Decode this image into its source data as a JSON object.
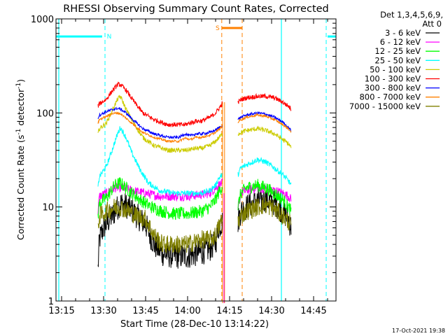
{
  "chart_data": {
    "type": "line",
    "title": "RHESSI Observing Summary Count Rates, Corrected",
    "xlabel": "Start Time (28-Dec-10 13:14:22)",
    "ylabel": "Corrected Count Rate (s",
    "ylabel_sup1": "-1",
    "ylabel_mid": " detector",
    "ylabel_sup2": "-1",
    "ylabel_end": ")",
    "y_scale": "log",
    "ylim": [
      1,
      1000
    ],
    "xlim_minutes": [
      -2,
      98
    ],
    "y_ticks": [
      {
        "value": 1,
        "label": "1"
      },
      {
        "value": 10,
        "label": "10"
      },
      {
        "value": 100,
        "label": "100"
      },
      {
        "value": 1000,
        "label": "1000"
      }
    ],
    "x_ticks": [
      {
        "minute": 0,
        "label": "13:15"
      },
      {
        "minute": 15,
        "label": "13:30"
      },
      {
        "minute": 30,
        "label": "13:45"
      },
      {
        "minute": 45,
        "label": "14:00"
      },
      {
        "minute": 60,
        "label": "14:15"
      },
      {
        "minute": 75,
        "label": "14:30"
      },
      {
        "minute": 90,
        "label": "14:45"
      }
    ],
    "legend_header": [
      "Det 1,3,4,5,6,9,",
      "Att 0"
    ],
    "legend_position": "right",
    "date_stamp": "17-Oct-2021 19:38",
    "flags": [
      {
        "label": "N",
        "color": "#00ffff",
        "value": 650,
        "segments": [
          [
            -2,
            14.5
          ],
          [
            95,
            98
          ]
        ],
        "boundaries": [
          15.5,
          94.5
        ]
      },
      {
        "label": "S",
        "color": "#ff8000",
        "value": 800,
        "segments": [
          [
            57.2,
            64.5
          ]
        ],
        "boundaries": [
          57.2,
          64.5
        ]
      }
    ],
    "cyan_lines": [
      -1,
      78.5
    ],
    "series": [
      {
        "name": "3 - 6 keV",
        "color": "#000000",
        "noise": 0.14,
        "points": [
          [
            13,
            2.2
          ],
          [
            13.5,
            4.5
          ],
          [
            15,
            6
          ],
          [
            18,
            8
          ],
          [
            21,
            11
          ],
          [
            24,
            10
          ],
          [
            27,
            8
          ],
          [
            30,
            6.5
          ],
          [
            33,
            4
          ],
          [
            36,
            3.2
          ],
          [
            40,
            3
          ],
          [
            45,
            3
          ],
          [
            50,
            3.3
          ],
          [
            53,
            3.6
          ],
          [
            55,
            4.2
          ],
          [
            56,
            6
          ],
          [
            57.5,
            7
          ],
          [
            63,
            7
          ],
          [
            64,
            9
          ],
          [
            66,
            10
          ],
          [
            70,
            11.5
          ],
          [
            73,
            12
          ],
          [
            76,
            11
          ],
          [
            79,
            9
          ],
          [
            81,
            7.5
          ],
          [
            82,
            6
          ]
        ]
      },
      {
        "name": "6 - 12 keV",
        "color": "#ff00ff",
        "noise": 0.05,
        "points": [
          [
            13,
            9
          ],
          [
            13.5,
            13
          ],
          [
            16,
            14
          ],
          [
            19,
            16
          ],
          [
            22,
            16
          ],
          [
            25,
            15
          ],
          [
            30,
            14
          ],
          [
            35,
            13
          ],
          [
            40,
            13
          ],
          [
            45,
            13
          ],
          [
            50,
            13.5
          ],
          [
            53,
            14
          ],
          [
            55,
            16
          ],
          [
            56,
            17
          ],
          [
            57.5,
            18
          ],
          [
            63,
            9
          ],
          [
            64,
            14
          ],
          [
            66,
            15
          ],
          [
            70,
            16
          ],
          [
            73,
            15.5
          ],
          [
            76,
            15
          ],
          [
            79,
            14
          ],
          [
            81,
            13
          ],
          [
            82,
            12
          ]
        ]
      },
      {
        "name": "12 - 25 keV",
        "color": "#00ff00",
        "noise": 0.07,
        "points": [
          [
            13,
            8
          ],
          [
            13.5,
            11
          ],
          [
            16,
            12.5
          ],
          [
            19,
            17
          ],
          [
            21,
            18
          ],
          [
            24,
            15
          ],
          [
            28,
            12
          ],
          [
            32,
            10
          ],
          [
            36,
            9
          ],
          [
            40,
            8.5
          ],
          [
            45,
            8.5
          ],
          [
            50,
            9
          ],
          [
            53,
            10
          ],
          [
            55,
            12
          ],
          [
            56,
            14
          ],
          [
            57.5,
            17
          ],
          [
            63,
            10
          ],
          [
            64,
            14
          ],
          [
            66,
            16
          ],
          [
            70,
            17
          ],
          [
            73,
            16
          ],
          [
            76,
            14
          ],
          [
            79,
            12
          ],
          [
            81,
            10
          ],
          [
            82,
            9
          ]
        ]
      },
      {
        "name": "25 - 50 keV",
        "color": "#00ffff",
        "noise": 0.03,
        "points": [
          [
            13,
            16
          ],
          [
            13.5,
            21
          ],
          [
            16,
            27
          ],
          [
            18,
            40
          ],
          [
            20,
            60
          ],
          [
            21,
            70
          ],
          [
            23,
            55
          ],
          [
            25,
            38
          ],
          [
            28,
            25
          ],
          [
            31,
            18
          ],
          [
            35,
            15
          ],
          [
            40,
            14
          ],
          [
            45,
            14
          ],
          [
            50,
            14
          ],
          [
            53,
            15
          ],
          [
            55,
            17
          ],
          [
            56,
            20
          ],
          [
            57.5,
            22
          ],
          [
            63,
            22
          ],
          [
            64,
            26
          ],
          [
            66,
            28
          ],
          [
            70,
            32
          ],
          [
            73,
            30
          ],
          [
            76,
            26
          ],
          [
            79,
            22
          ],
          [
            81,
            19
          ],
          [
            82,
            17
          ]
        ]
      },
      {
        "name": "50 - 100 keV",
        "color": "#cccc00",
        "noise": 0.025,
        "points": [
          [
            13,
            60
          ],
          [
            13.5,
            68
          ],
          [
            16,
            78
          ],
          [
            18,
            105
          ],
          [
            20,
            140
          ],
          [
            21,
            150
          ],
          [
            23,
            110
          ],
          [
            26,
            75
          ],
          [
            29,
            55
          ],
          [
            33,
            45
          ],
          [
            38,
            40
          ],
          [
            44,
            40
          ],
          [
            48,
            42
          ],
          [
            50,
            42
          ],
          [
            53,
            45
          ],
          [
            55,
            50
          ],
          [
            57,
            58
          ],
          [
            57.5,
            60
          ],
          [
            63,
            60
          ],
          [
            64,
            62
          ],
          [
            66,
            65
          ],
          [
            70,
            68
          ],
          [
            73,
            65
          ],
          [
            76,
            60
          ],
          [
            79,
            52
          ],
          [
            81,
            47
          ],
          [
            82,
            43
          ]
        ]
      },
      {
        "name": "100 - 300 keV",
        "color": "#ff0000",
        "noise": 0.025,
        "points": [
          [
            13,
            118
          ],
          [
            13.5,
            125
          ],
          [
            16,
            140
          ],
          [
            18,
            170
          ],
          [
            20,
            200
          ],
          [
            21,
            200
          ],
          [
            23,
            175
          ],
          [
            26,
            130
          ],
          [
            29,
            100
          ],
          [
            33,
            85
          ],
          [
            38,
            75
          ],
          [
            44,
            75
          ],
          [
            48,
            82
          ],
          [
            50,
            82
          ],
          [
            53,
            90
          ],
          [
            55,
            100
          ],
          [
            57,
            120
          ],
          [
            57.5,
            130
          ],
          [
            63,
            130
          ],
          [
            64,
            138
          ],
          [
            66,
            145
          ],
          [
            70,
            150
          ],
          [
            73,
            150
          ],
          [
            76,
            145
          ],
          [
            79,
            130
          ],
          [
            81,
            118
          ],
          [
            82,
            110
          ]
        ]
      },
      {
        "name": "300 - 800 keV",
        "color": "#0000ff",
        "noise": 0.015,
        "points": [
          [
            13,
            88
          ],
          [
            13.5,
            95
          ],
          [
            16,
            103
          ],
          [
            18,
            108
          ],
          [
            20,
            112
          ],
          [
            21,
            110
          ],
          [
            23,
            100
          ],
          [
            26,
            82
          ],
          [
            29,
            68
          ],
          [
            33,
            60
          ],
          [
            38,
            55
          ],
          [
            42,
            55
          ],
          [
            44,
            60
          ],
          [
            46,
            57
          ],
          [
            48,
            60
          ],
          [
            50,
            60
          ],
          [
            53,
            62
          ],
          [
            55,
            66
          ],
          [
            57,
            72
          ],
          [
            57.5,
            75
          ],
          [
            63,
            85
          ],
          [
            64,
            90
          ],
          [
            66,
            95
          ],
          [
            70,
            100
          ],
          [
            73,
            97
          ],
          [
            76,
            90
          ],
          [
            79,
            80
          ],
          [
            81,
            70
          ],
          [
            82,
            65
          ]
        ]
      },
      {
        "name": "800 - 7000 keV",
        "color": "#ff8000",
        "noise": 0.012,
        "points": [
          [
            13,
            78
          ],
          [
            13.5,
            85
          ],
          [
            16,
            92
          ],
          [
            18,
            98
          ],
          [
            20,
            100
          ],
          [
            21,
            98
          ],
          [
            23,
            88
          ],
          [
            26,
            74
          ],
          [
            29,
            62
          ],
          [
            33,
            55
          ],
          [
            38,
            50
          ],
          [
            42,
            50
          ],
          [
            44,
            54
          ],
          [
            46,
            52
          ],
          [
            48,
            55
          ],
          [
            50,
            55
          ],
          [
            53,
            58
          ],
          [
            55,
            62
          ],
          [
            57,
            70
          ],
          [
            57.5,
            75
          ],
          [
            63,
            80
          ],
          [
            64,
            85
          ],
          [
            66,
            90
          ],
          [
            70,
            95
          ],
          [
            73,
            92
          ],
          [
            76,
            85
          ],
          [
            79,
            75
          ],
          [
            81,
            68
          ],
          [
            82,
            62
          ]
        ]
      },
      {
        "name": "7000 - 15000 keV",
        "color": "#808000",
        "noise": 0.1,
        "points": [
          [
            13,
            6
          ],
          [
            13.5,
            8
          ],
          [
            16,
            9
          ],
          [
            19,
            10
          ],
          [
            21,
            10
          ],
          [
            24,
            9
          ],
          [
            27,
            8
          ],
          [
            30,
            7.5
          ],
          [
            33,
            5
          ],
          [
            36,
            4
          ],
          [
            40,
            4
          ],
          [
            45,
            4
          ],
          [
            50,
            4.5
          ],
          [
            53,
            4.5
          ],
          [
            55,
            5
          ],
          [
            56,
            6
          ],
          [
            57.5,
            7.5
          ],
          [
            63,
            7
          ],
          [
            64,
            8
          ],
          [
            66,
            9
          ],
          [
            70,
            10
          ],
          [
            73,
            10.5
          ],
          [
            76,
            9.5
          ],
          [
            79,
            8
          ],
          [
            81,
            7
          ],
          [
            82,
            6.5
          ]
        ]
      }
    ]
  }
}
